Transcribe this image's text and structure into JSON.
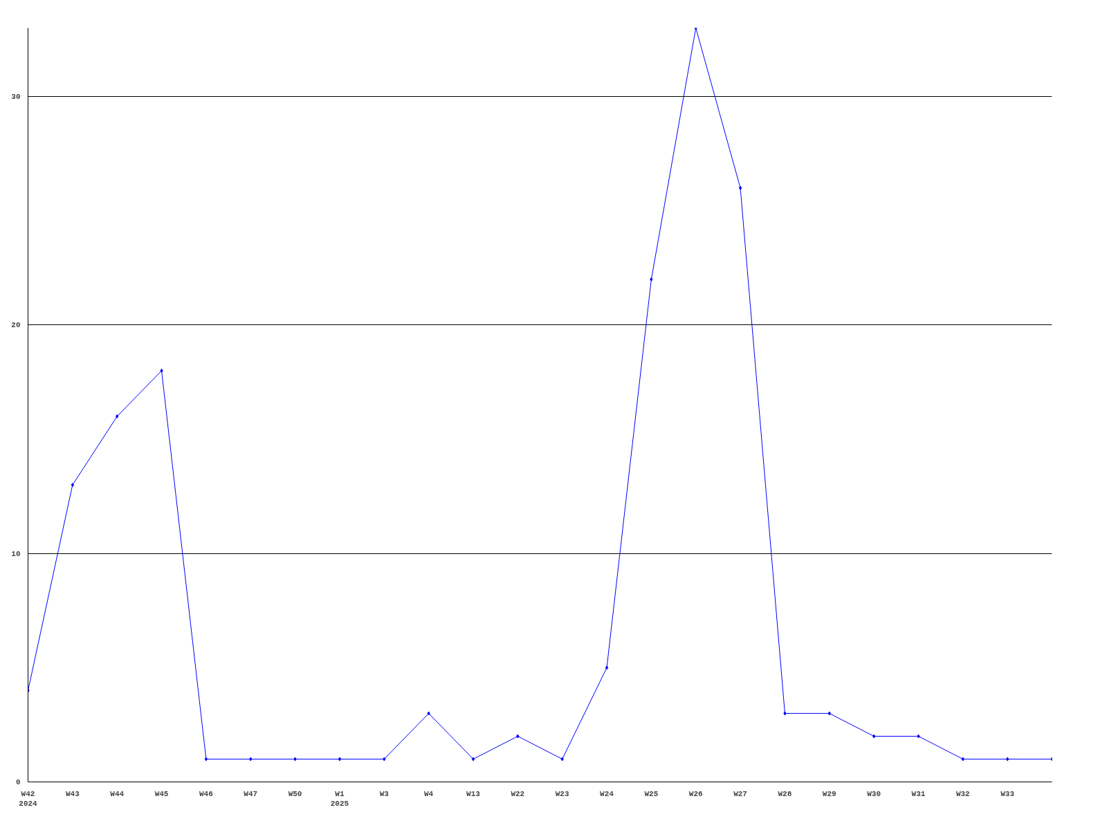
{
  "chart_data": {
    "type": "line",
    "categories": [
      "W42\n2024",
      "W43",
      "W44",
      "W45",
      "W46",
      "W47",
      "W50",
      "W1\n2025",
      "W3",
      "W4",
      "W13",
      "W22",
      "W23",
      "W24",
      "W25",
      "W26",
      "W27",
      "W28",
      "W29",
      "W30",
      "W31",
      "W32",
      "W33",
      null
    ],
    "series": [
      {
        "color": "#0000ff",
        "values": [
          4,
          13,
          16,
          18,
          1,
          1,
          1,
          1,
          1,
          3,
          1,
          2,
          1,
          5,
          22,
          33,
          26,
          3,
          3,
          2,
          2,
          1,
          1,
          1
        ]
      }
    ],
    "ylim": [
      0,
      33
    ],
    "yticks": [
      0,
      10,
      20,
      30
    ],
    "grid": "y",
    "marker": "diamond",
    "line_style": "solid"
  }
}
